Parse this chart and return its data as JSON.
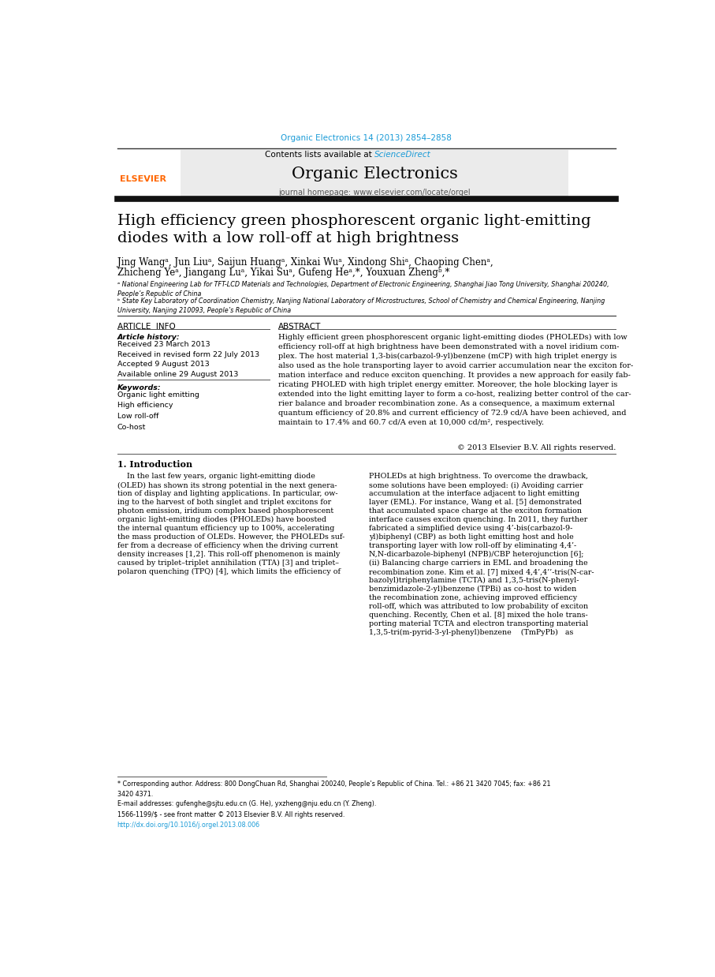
{
  "page_width": 9.07,
  "page_height": 12.38,
  "bg_color": "#ffffff",
  "top_citation": "Organic Electronics 14 (2013) 2854–2858",
  "top_citation_color": "#1a9bd7",
  "journal_header_bg": "#e8e8e8",
  "sciencedirect_color": "#1a9bd7",
  "journal_name": "Organic Electronics",
  "journal_homepage": "journal homepage: www.elsevier.com/locate/orgel",
  "article_title": "High efficiency green phosphorescent organic light-emitting\ndiodes with a low roll-off at high brightness",
  "authors_line1": "Jing Wangᵃ, Jun Liuᵃ, Saijun Huangᵃ, Xinkai Wuᵃ, Xindong Shiᵃ, Chaoping Chenᵃ,",
  "authors_line2": "Zhicheng Yeᵃ, Jiangang Luᵃ, Yikai Suᵃ, Gufeng Heᵃ,*, Youxuan Zhengᵇ,*",
  "affiliation_a": "ᵃ National Engineering Lab for TFT-LCD Materials and Technologies, Department of Electronic Engineering, Shanghai Jiao Tong University, Shanghai 200240,\nPeople’s Republic of China",
  "affiliation_b": "ᵇ State Key Laboratory of Coordination Chemistry, Nanjing National Laboratory of Microstructures, School of Chemistry and Chemical Engineering, Nanjing\nUniversity, Nanjing 210093, People’s Republic of China",
  "article_info_title": "ARTICLE  INFO",
  "abstract_title": "ABSTRACT",
  "article_history_label": "Article history:",
  "article_history": "Received 23 March 2013\nReceived in revised form 22 July 2013\nAccepted 9 August 2013\nAvailable online 29 August 2013",
  "keywords_label": "Keywords:",
  "keywords": "Organic light emitting\nHigh efficiency\nLow roll-off\nCo-host",
  "abstract_text": "Highly efficient green phosphorescent organic light-emitting diodes (PHOLEDs) with low\nefficiency roll-off at high brightness have been demonstrated with a novel iridium com-\nplex. The host material 1,3-bis(carbazol-9-yl)benzene (mCP) with high triplet energy is\nalso used as the hole transporting layer to avoid carrier accumulation near the exciton for-\nmation interface and reduce exciton quenching. It provides a new approach for easily fab-\nricating PHOLED with high triplet energy emitter. Moreover, the hole blocking layer is\nextended into the light emitting layer to form a co-host, realizing better control of the car-\nrier balance and broader recombination zone. As a consequence, a maximum external\nquantum efficiency of 20.8% and current efficiency of 72.9 cd/A have been achieved, and\nmaintain to 17.4% and 60.7 cd/A even at 10,000 cd/m², respectively.",
  "copyright": "© 2013 Elsevier B.V. All rights reserved.",
  "section1_title": "1. Introduction",
  "intro_col1_lines": [
    "    In the last few years, organic light-emitting diode",
    "(OLED) has shown its strong potential in the next genera-",
    "tion of display and lighting applications. In particular, ow-",
    "ing to the harvest of both singlet and triplet excitons for",
    "photon emission, iridium complex based phosphorescent",
    "organic light-emitting diodes (PHOLEDs) have boosted",
    "the internal quantum efficiency up to 100%, accelerating",
    "the mass production of OLEDs. However, the PHOLEDs suf-",
    "fer from a decrease of efficiency when the driving current",
    "density increases [1,2]. This roll-off phenomenon is mainly",
    "caused by triplet–triplet annihilation (TTA) [3] and triplet–",
    "polaron quenching (TPQ) [4], which limits the efficiency of"
  ],
  "intro_col2_lines": [
    "PHOLEDs at high brightness. To overcome the drawback,",
    "some solutions have been employed: (i) Avoiding carrier",
    "accumulation at the interface adjacent to light emitting",
    "layer (EML). For instance, Wang et al. [5] demonstrated",
    "that accumulated space charge at the exciton formation",
    "interface causes exciton quenching. In 2011, they further",
    "fabricated a simplified device using 4’-bis(carbazol-9-",
    "yl)biphenyl (CBP) as both light emitting host and hole",
    "transporting layer with low roll-off by eliminating 4,4’-",
    "N,N-dicarbazole-biphenyl (NPB)/CBP heterojunction [6];",
    "(ii) Balancing charge carriers in EML and broadening the",
    "recombination zone. Kim et al. [7] mixed 4,4’,4’’-tris(N-car-",
    "bazolyl)triphenylamine (TCTA) and 1,3,5-tris(N-phenyl-",
    "benzimidazole-2-yl)benzene (TPBi) as co-host to widen",
    "the recombination zone, achieving improved efficiency",
    "roll-off, which was attributed to low probability of exciton",
    "quenching. Recently, Chen et al. [8] mixed the hole trans-",
    "porting material TCTA and electron transporting material",
    "1,3,5-tri(m-pyrid-3-yl-phenyl)benzene    (TmPyPb)   as"
  ],
  "footnote1": "* Corresponding author. Address: 800 DongChuan Rd, Shanghai 200240, People’s Republic of China. Tel.: +86 21 3420 7045; fax: +86 21",
  "footnote1b": "3420 4371.",
  "footnote2": "E-mail addresses: gufenghe@sjtu.edu.cn (G. He), yxzheng@nju.edu.cn (Y. Zheng).",
  "footnote3a": "1566-1199/$ - see front matter © 2013 Elsevier B.V. All rights reserved.",
  "footnote3b": "http://dx.doi.org/10.1016/j.orgel.2013.08.006",
  "link_color": "#1a9bd7",
  "text_color": "#000000",
  "gray_color": "#555555",
  "elsevier_color": "#ff6600"
}
